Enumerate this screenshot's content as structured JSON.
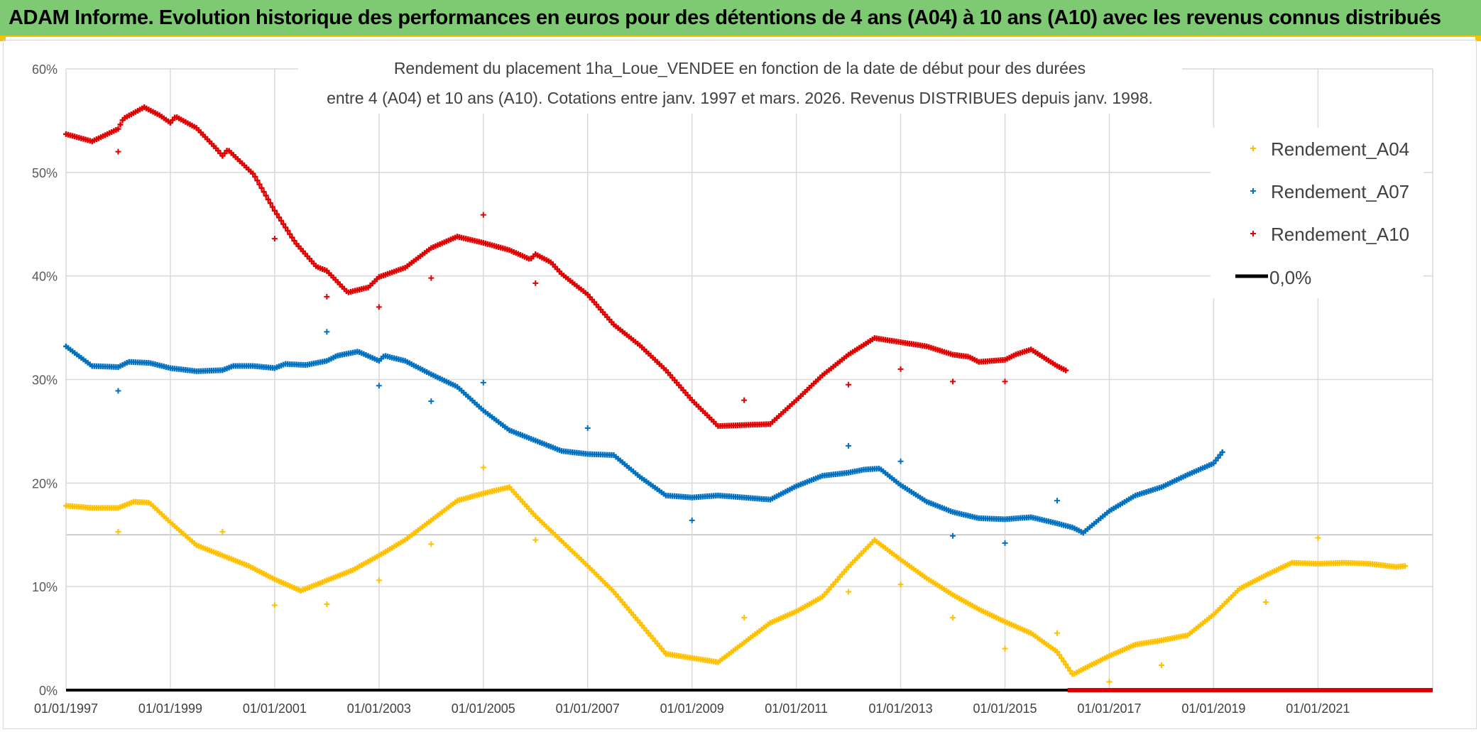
{
  "header": {
    "title": "ADAM Informe. Evolution historique des performances en euros pour des détentions de 4 ans (A04) à 10 ans (A10) avec les revenus connus distribués"
  },
  "colors": {
    "banner_bg": "#7dca72",
    "banner_border": "#f2c300",
    "A04": "#ffc000",
    "A07": "#0070c0",
    "A10": "#e00000",
    "zero": "#000000",
    "grid": "#d9d9d9"
  },
  "chart_data": {
    "type": "scatter",
    "title_line1": "Rendement du placement 1ha_Loue_VENDEE en fonction de la date de début pour des durées",
    "title_line2": "entre 4 (A04) et 10 ans (A10). Cotations entre janv. 1997 et mars. 2026. Revenus DISTRIBUES depuis janv. 1998.",
    "xlabel": "",
    "ylabel": "",
    "xlim": [
      1997.0,
      2023.2
    ],
    "ylim": [
      0,
      60
    ],
    "y_ticks": [
      "0%",
      "10%",
      "20%",
      "30%",
      "40%",
      "50%",
      "60%"
    ],
    "x_ticks": [
      "01/01/1997",
      "01/01/1999",
      "01/01/2001",
      "01/01/2003",
      "01/01/2005",
      "01/01/2007",
      "01/01/2009",
      "01/01/2011",
      "01/01/2013",
      "01/01/2015",
      "01/01/2017",
      "01/01/2019",
      "01/01/2021"
    ],
    "legend_position": "top-right",
    "series": [
      {
        "name": "Rendement_A04",
        "curve": [
          [
            1997.0,
            17.8
          ],
          [
            1997.5,
            17.6
          ],
          [
            1998.0,
            17.6
          ],
          [
            1998.3,
            18.2
          ],
          [
            1998.6,
            18.1
          ],
          [
            1999.0,
            16.2
          ],
          [
            1999.5,
            14.0
          ],
          [
            2000.0,
            13.0
          ],
          [
            2000.5,
            12.0
          ],
          [
            2001.0,
            10.7
          ],
          [
            2001.5,
            9.6
          ],
          [
            2002.0,
            10.6
          ],
          [
            2002.5,
            11.6
          ],
          [
            2003.0,
            13.0
          ],
          [
            2003.5,
            14.5
          ],
          [
            2004.0,
            16.4
          ],
          [
            2004.5,
            18.3
          ],
          [
            2005.0,
            19.0
          ],
          [
            2005.5,
            19.6
          ],
          [
            2006.0,
            16.8
          ],
          [
            2006.5,
            14.4
          ],
          [
            2007.0,
            12.0
          ],
          [
            2007.5,
            9.5
          ],
          [
            2008.0,
            6.5
          ],
          [
            2008.5,
            3.5
          ],
          [
            2009.0,
            3.1
          ],
          [
            2009.5,
            2.7
          ],
          [
            2010.0,
            4.6
          ],
          [
            2010.5,
            6.5
          ],
          [
            2011.0,
            7.6
          ],
          [
            2011.5,
            9.0
          ],
          [
            2012.0,
            11.9
          ],
          [
            2012.5,
            14.5
          ],
          [
            2013.0,
            12.6
          ],
          [
            2013.5,
            10.8
          ],
          [
            2014.0,
            9.2
          ],
          [
            2014.5,
            7.8
          ],
          [
            2015.0,
            6.6
          ],
          [
            2015.5,
            5.5
          ],
          [
            2016.0,
            3.7
          ],
          [
            2016.3,
            1.5
          ],
          [
            2016.6,
            2.3
          ],
          [
            2017.0,
            3.3
          ],
          [
            2017.5,
            4.4
          ],
          [
            2018.0,
            4.8
          ],
          [
            2018.5,
            5.3
          ],
          [
            2019.0,
            7.3
          ],
          [
            2019.5,
            9.8
          ],
          [
            2020.0,
            11.1
          ],
          [
            2020.5,
            12.3
          ],
          [
            2021.0,
            12.2
          ],
          [
            2021.5,
            12.3
          ],
          [
            2022.0,
            12.2
          ],
          [
            2022.5,
            11.9
          ],
          [
            2022.7,
            12.0
          ]
        ],
        "outliers": [
          [
            1998.0,
            15.3
          ],
          [
            2000.0,
            15.3
          ],
          [
            2001.0,
            8.2
          ],
          [
            2002.0,
            8.3
          ],
          [
            2003.0,
            10.6
          ],
          [
            2004.0,
            14.1
          ],
          [
            2005.0,
            21.5
          ],
          [
            2006.0,
            14.5
          ],
          [
            2010.0,
            7.0
          ],
          [
            2012.0,
            9.5
          ],
          [
            2013.0,
            10.2
          ],
          [
            2014.0,
            7.0
          ],
          [
            2015.0,
            4.0
          ],
          [
            2016.0,
            5.5
          ],
          [
            2017.0,
            0.8
          ],
          [
            2018.0,
            2.4
          ],
          [
            2020.0,
            8.5
          ],
          [
            2021.0,
            14.7
          ]
        ]
      },
      {
        "name": "Rendement_A07",
        "curve": [
          [
            1997.0,
            33.2
          ],
          [
            1997.5,
            31.3
          ],
          [
            1998.0,
            31.2
          ],
          [
            1998.2,
            31.7
          ],
          [
            1998.6,
            31.6
          ],
          [
            1999.0,
            31.1
          ],
          [
            1999.5,
            30.8
          ],
          [
            2000.0,
            30.9
          ],
          [
            2000.2,
            31.3
          ],
          [
            2000.6,
            31.3
          ],
          [
            2001.0,
            31.1
          ],
          [
            2001.2,
            31.5
          ],
          [
            2001.6,
            31.4
          ],
          [
            2002.0,
            31.8
          ],
          [
            2002.2,
            32.3
          ],
          [
            2002.6,
            32.7
          ],
          [
            2003.0,
            31.8
          ],
          [
            2003.1,
            32.3
          ],
          [
            2003.5,
            31.8
          ],
          [
            2004.0,
            30.5
          ],
          [
            2004.5,
            29.3
          ],
          [
            2005.0,
            27.0
          ],
          [
            2005.5,
            25.1
          ],
          [
            2006.0,
            24.1
          ],
          [
            2006.5,
            23.1
          ],
          [
            2007.0,
            22.8
          ],
          [
            2007.5,
            22.7
          ],
          [
            2008.0,
            20.6
          ],
          [
            2008.5,
            18.8
          ],
          [
            2009.0,
            18.6
          ],
          [
            2009.5,
            18.8
          ],
          [
            2010.0,
            18.6
          ],
          [
            2010.5,
            18.4
          ],
          [
            2011.0,
            19.7
          ],
          [
            2011.5,
            20.7
          ],
          [
            2012.0,
            21.0
          ],
          [
            2012.3,
            21.3
          ],
          [
            2012.6,
            21.4
          ],
          [
            2013.0,
            19.8
          ],
          [
            2013.5,
            18.2
          ],
          [
            2014.0,
            17.2
          ],
          [
            2014.5,
            16.6
          ],
          [
            2015.0,
            16.5
          ],
          [
            2015.5,
            16.7
          ],
          [
            2016.0,
            16.1
          ],
          [
            2016.3,
            15.7
          ],
          [
            2016.5,
            15.2
          ],
          [
            2017.0,
            17.3
          ],
          [
            2017.5,
            18.8
          ],
          [
            2018.0,
            19.6
          ],
          [
            2018.5,
            20.8
          ],
          [
            2019.0,
            21.9
          ],
          [
            2019.2,
            23.2
          ]
        ],
        "outliers": [
          [
            1998.0,
            28.9
          ],
          [
            2002.0,
            34.6
          ],
          [
            2003.0,
            29.4
          ],
          [
            2004.0,
            27.9
          ],
          [
            2005.0,
            29.7
          ],
          [
            2007.0,
            25.3
          ],
          [
            2009.0,
            16.4
          ],
          [
            2012.0,
            23.6
          ],
          [
            2013.0,
            22.1
          ],
          [
            2014.0,
            14.9
          ],
          [
            2015.0,
            14.2
          ],
          [
            2016.0,
            18.3
          ]
        ]
      },
      {
        "name": "Rendement_A10",
        "curve": [
          [
            1997.0,
            53.7
          ],
          [
            1997.5,
            53.0
          ],
          [
            1998.0,
            54.2
          ],
          [
            1998.1,
            55.2
          ],
          [
            1998.5,
            56.3
          ],
          [
            1998.8,
            55.5
          ],
          [
            1999.0,
            54.8
          ],
          [
            1999.1,
            55.4
          ],
          [
            1999.5,
            54.3
          ],
          [
            1999.9,
            52.2
          ],
          [
            2000.0,
            51.6
          ],
          [
            2000.1,
            52.2
          ],
          [
            2000.6,
            49.8
          ],
          [
            2001.0,
            46.3
          ],
          [
            2001.4,
            43.2
          ],
          [
            2001.8,
            40.9
          ],
          [
            2002.0,
            40.5
          ],
          [
            2002.4,
            38.4
          ],
          [
            2002.8,
            38.9
          ],
          [
            2003.0,
            39.9
          ],
          [
            2003.5,
            40.8
          ],
          [
            2004.0,
            42.7
          ],
          [
            2004.5,
            43.8
          ],
          [
            2005.0,
            43.2
          ],
          [
            2005.5,
            42.5
          ],
          [
            2005.9,
            41.6
          ],
          [
            2006.0,
            42.1
          ],
          [
            2006.3,
            41.3
          ],
          [
            2006.5,
            40.2
          ],
          [
            2007.0,
            38.2
          ],
          [
            2007.5,
            35.3
          ],
          [
            2008.0,
            33.3
          ],
          [
            2008.5,
            30.9
          ],
          [
            2009.0,
            28.0
          ],
          [
            2009.5,
            25.5
          ],
          [
            2010.0,
            25.6
          ],
          [
            2010.5,
            25.7
          ],
          [
            2011.0,
            28.0
          ],
          [
            2011.5,
            30.4
          ],
          [
            2012.0,
            32.4
          ],
          [
            2012.5,
            34.0
          ],
          [
            2013.0,
            33.6
          ],
          [
            2013.5,
            33.2
          ],
          [
            2014.0,
            32.4
          ],
          [
            2014.3,
            32.2
          ],
          [
            2014.5,
            31.7
          ],
          [
            2015.0,
            31.9
          ],
          [
            2015.2,
            32.4
          ],
          [
            2015.5,
            32.9
          ],
          [
            2016.0,
            31.3
          ],
          [
            2016.2,
            30.8
          ]
        ],
        "outliers": [
          [
            1998.0,
            52.0
          ],
          [
            2001.0,
            43.6
          ],
          [
            2002.0,
            38.0
          ],
          [
            2003.0,
            37.0
          ],
          [
            2004.0,
            39.8
          ],
          [
            2005.0,
            45.9
          ],
          [
            2006.0,
            39.3
          ],
          [
            2010.0,
            28.0
          ],
          [
            2012.0,
            29.5
          ],
          [
            2013.0,
            31.0
          ],
          [
            2014.0,
            29.8
          ],
          [
            2015.0,
            29.8
          ]
        ],
        "zero_band": [
          2016.2,
          2023.2
        ]
      },
      {
        "name": "0,0%",
        "value": 0
      }
    ]
  }
}
